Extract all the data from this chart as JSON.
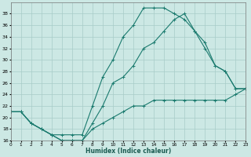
{
  "xlabel": "Humidex (Indice chaleur)",
  "bg_color": "#cce8e4",
  "line_color": "#1a7a6e",
  "grid_color": "#a8ccc8",
  "line1_x": [
    0,
    1,
    2,
    3,
    4,
    5,
    6,
    7,
    8,
    9,
    10,
    11,
    12,
    13,
    14,
    15,
    16,
    17,
    18,
    19,
    20,
    21,
    22,
    23
  ],
  "line1_y": [
    21,
    21,
    19,
    18,
    17,
    17,
    17,
    17,
    22,
    27,
    30,
    34,
    36,
    39,
    39,
    39,
    38,
    37,
    35,
    33,
    29,
    28,
    25,
    25
  ],
  "line2_x": [
    0,
    1,
    2,
    3,
    4,
    5,
    6,
    7,
    8,
    9,
    10,
    11,
    12,
    13,
    14,
    15,
    16,
    17,
    18,
    19,
    20,
    21,
    22,
    23
  ],
  "line2_y": [
    21,
    21,
    19,
    18,
    17,
    16,
    16,
    16,
    19,
    22,
    26,
    27,
    29,
    32,
    33,
    35,
    37,
    38,
    35,
    32,
    29,
    28,
    25,
    25
  ],
  "line3_x": [
    0,
    1,
    2,
    3,
    4,
    5,
    6,
    7,
    8,
    9,
    10,
    11,
    12,
    13,
    14,
    15,
    16,
    17,
    18,
    19,
    20,
    21,
    22,
    23
  ],
  "line3_y": [
    21,
    21,
    19,
    18,
    17,
    16,
    16,
    16,
    18,
    19,
    20,
    21,
    22,
    22,
    23,
    23,
    23,
    23,
    23,
    23,
    23,
    23,
    24,
    25
  ],
  "xlim": [
    0,
    23
  ],
  "ylim": [
    16,
    40
  ],
  "ytick_min": 16,
  "ytick_max": 38,
  "ytick_step": 2,
  "xticks": [
    0,
    1,
    2,
    3,
    4,
    5,
    6,
    7,
    8,
    9,
    10,
    11,
    12,
    13,
    14,
    15,
    16,
    17,
    18,
    19,
    20,
    21,
    22,
    23
  ]
}
